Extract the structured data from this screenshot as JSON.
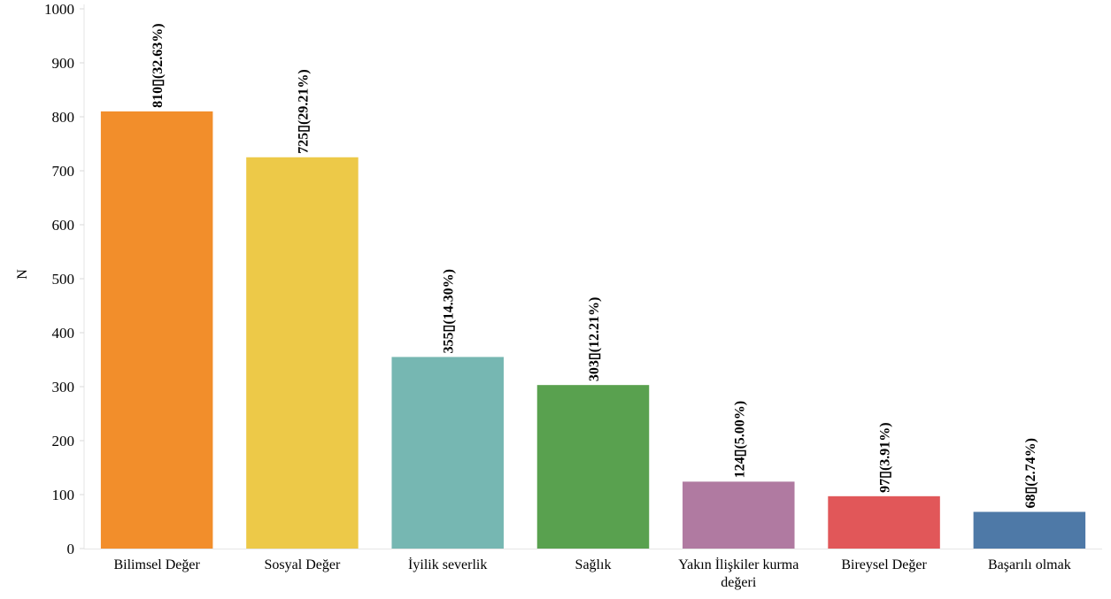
{
  "chart_data": {
    "type": "bar",
    "title": "",
    "xlabel": "",
    "ylabel": "N",
    "ylim": [
      0,
      1000
    ],
    "yticks": [
      0,
      100,
      200,
      300,
      400,
      500,
      600,
      700,
      800,
      900,
      1000
    ],
    "grid": false,
    "categories": [
      [
        "Bilimsel Değer"
      ],
      [
        "Sosyal Değer"
      ],
      [
        "İyilik severlik"
      ],
      [
        "Sağlık"
      ],
      [
        "Yakın İlişkiler kurma",
        "değeri"
      ],
      [
        "Bireysel Değer"
      ],
      [
        "Başarılı olmak"
      ]
    ],
    "values": [
      810,
      725,
      355,
      303,
      124,
      97,
      68
    ],
    "data_labels": [
      "810▯(32.63%)",
      "725▯(29.21%)",
      "355▯(14.30%)",
      "303▯(12.21%)",
      "124▯(5.00%)",
      "97▯(3.91%)",
      "68▯(2.74%)"
    ],
    "colors": [
      "#F28E2B",
      "#EDC948",
      "#76B7B2",
      "#59A14F",
      "#B07AA1",
      "#E15759",
      "#4E79A7"
    ]
  }
}
